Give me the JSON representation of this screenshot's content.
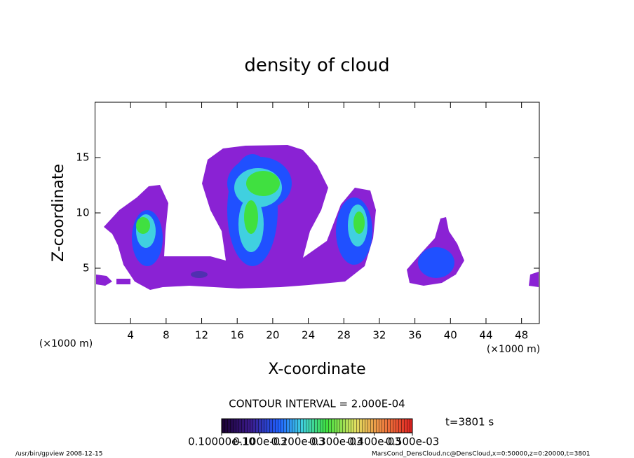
{
  "chart_data": {
    "type": "contour",
    "title": "density of cloud",
    "xlabel": "X-coordinate",
    "ylabel": "Z-coordinate",
    "x_unit": "(×1000 m)",
    "y_unit": "(×1000 m)",
    "xlim": [
      0,
      50
    ],
    "xticks": [
      4,
      8,
      12,
      16,
      20,
      24,
      28,
      32,
      36,
      40,
      44,
      48
    ],
    "ylim": [
      0,
      20
    ],
    "yticks": [
      5,
      10,
      15
    ],
    "contour_interval": "CONTOUR INTERVAL = 2.000E-04",
    "time": "t=3801 s",
    "colorbar": {
      "clim": [
        0,
        0.0005
      ],
      "ticks": [
        {
          "value": 1e-11,
          "label": "0.10000e-10"
        },
        {
          "value": 0.0001,
          "label": "0.100e-03"
        },
        {
          "value": 0.0002,
          "label": "0.200e-03"
        },
        {
          "value": 0.0003,
          "label": "0.300e-03"
        },
        {
          "value": 0.0004,
          "label": "0.400e-03"
        },
        {
          "value": 0.0005,
          "label": "0.500e-03"
        }
      ]
    },
    "footer_left": "/usr/bin/gpview   2008-12-15",
    "footer_right": "MarsCond_DensCloud.nc@DensCloud,x=0:50000,z=0:20000,t=3801"
  }
}
